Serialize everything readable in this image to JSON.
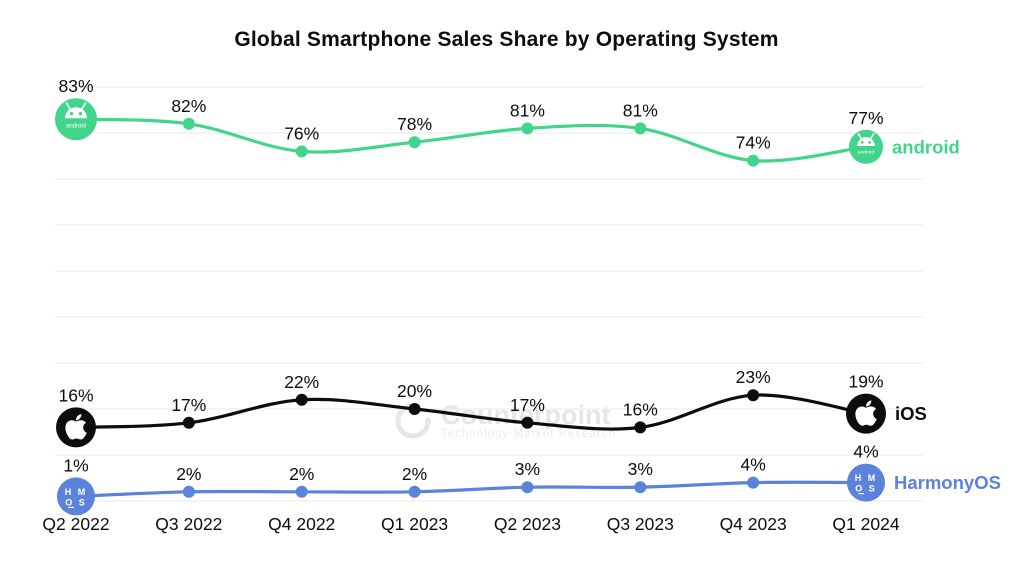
{
  "title": "Global Smartphone Sales Share by Operating System",
  "watermark": {
    "name": "Counterpoint",
    "tagline": "Technology Market Research"
  },
  "chart_data": {
    "type": "line",
    "title": "Global Smartphone Sales Share by Operating System",
    "categories": [
      "Q2 2022",
      "Q3 2022",
      "Q4 2022",
      "Q1 2023",
      "Q2 2023",
      "Q3 2023",
      "Q4 2023",
      "Q1 2024"
    ],
    "series": [
      {
        "name": "android",
        "icon": "android-icon",
        "color": "#41d58c",
        "values": [
          83,
          82,
          76,
          78,
          81,
          81,
          74,
          77
        ]
      },
      {
        "name": "iOS",
        "icon": "apple-icon",
        "color": "#0d0d0d",
        "values": [
          16,
          17,
          22,
          20,
          17,
          16,
          23,
          19
        ]
      },
      {
        "name": "HarmonyOS",
        "icon": "harmonyos-icon",
        "color": "#5b83dc",
        "values": [
          1,
          2,
          2,
          2,
          3,
          3,
          4,
          4
        ]
      }
    ],
    "value_suffix": "%",
    "ylim": [
      0,
      90
    ],
    "grid": true,
    "gridline_step": 10,
    "legend_position": "end-of-line"
  }
}
